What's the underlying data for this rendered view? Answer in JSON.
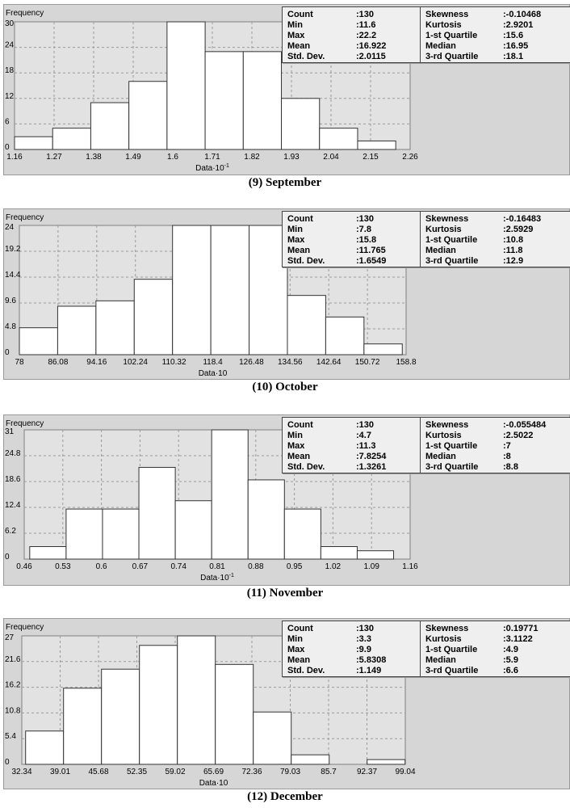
{
  "chart_data": [
    {
      "type": "bar",
      "caption": "(9) September",
      "ylabel": "Frequency",
      "xlabel": "Data·10",
      "xlabel_exp": "-1",
      "xticks": [
        "1.16",
        "1.27",
        "1.38",
        "1.49",
        "1.6",
        "1.71",
        "1.82",
        "1.93",
        "2.04",
        "2.15",
        "2.26"
      ],
      "yticks": [
        "0",
        "6",
        "12",
        "18",
        "24",
        "30"
      ],
      "xlim": [
        1.16,
        2.26
      ],
      "ylim": [
        0,
        30
      ],
      "bin_edges_start": 1.16,
      "bin_width": 0.106,
      "values": [
        3,
        5,
        11,
        16,
        30,
        23,
        23,
        12,
        5,
        2
      ],
      "grid": true,
      "stats": {
        "left": [
          [
            "Count",
            "130"
          ],
          [
            "Min",
            "11.6"
          ],
          [
            "Max",
            "22.2"
          ],
          [
            "Mean",
            "16.922"
          ],
          [
            "Std. Dev.",
            "2.0115"
          ]
        ],
        "right": [
          [
            "Skewness",
            "-0.10468"
          ],
          [
            "Kurtosis",
            "2.9201"
          ],
          [
            "1-st Quartile",
            "15.6"
          ],
          [
            "Median",
            "16.95"
          ],
          [
            "3-rd Quartile",
            "18.1"
          ]
        ]
      }
    },
    {
      "type": "bar",
      "caption": "(10) October",
      "ylabel": "Frequency",
      "xlabel": "Data·10",
      "xlabel_exp": "",
      "xticks": [
        "78",
        "86.08",
        "94.16",
        "102.24",
        "110.32",
        "118.4",
        "126.48",
        "134.56",
        "142.64",
        "150.72",
        "158.8"
      ],
      "yticks": [
        "0",
        "4.8",
        "9.6",
        "14.4",
        "19.2",
        "24"
      ],
      "xlim": [
        78,
        158.8
      ],
      "ylim": [
        0,
        24
      ],
      "bin_edges_start": 78,
      "bin_width": 8,
      "values": [
        5,
        9,
        10,
        14,
        24,
        24,
        24,
        11,
        7,
        2
      ],
      "grid": true,
      "stats": {
        "left": [
          [
            "Count",
            "130"
          ],
          [
            "Min",
            "7.8"
          ],
          [
            "Max",
            "15.8"
          ],
          [
            "Mean",
            "11.765"
          ],
          [
            "Std. Dev.",
            "1.6549"
          ]
        ],
        "right": [
          [
            "Skewness",
            "-0.16483"
          ],
          [
            "Kurtosis",
            "2.5929"
          ],
          [
            "1-st Quartile",
            "10.8"
          ],
          [
            "Median",
            "11.8"
          ],
          [
            "3-rd Quartile",
            "12.9"
          ]
        ]
      }
    },
    {
      "type": "bar",
      "caption": "(11) November",
      "ylabel": "Frequency",
      "xlabel": "Data·10",
      "xlabel_exp": "-1",
      "xticks": [
        "0.46",
        "0.53",
        "0.6",
        "0.67",
        "0.74",
        "0.81",
        "0.88",
        "0.95",
        "1.02",
        "1.09",
        "1.16"
      ],
      "yticks": [
        "0",
        "6.2",
        "12.4",
        "18.6",
        "24.8",
        "31"
      ],
      "xlim": [
        0.46,
        1.16
      ],
      "ylim": [
        0,
        31
      ],
      "bin_edges_start": 0.47,
      "bin_width": 0.066,
      "values": [
        3,
        12,
        12,
        22,
        14,
        31,
        19,
        12,
        3,
        2
      ],
      "grid": true,
      "stats": {
        "left": [
          [
            "Count",
            "130"
          ],
          [
            "Min",
            "4.7"
          ],
          [
            "Max",
            "11.3"
          ],
          [
            "Mean",
            "7.8254"
          ],
          [
            "Std. Dev.",
            "1.3261"
          ]
        ],
        "right": [
          [
            "Skewness",
            "-0.055484"
          ],
          [
            "Kurtosis",
            "2.5022"
          ],
          [
            "1-st Quartile",
            "7"
          ],
          [
            "Median",
            "8"
          ],
          [
            "3-rd Quartile",
            "8.8"
          ]
        ]
      }
    },
    {
      "type": "bar",
      "caption": "(12) December",
      "ylabel": "Frequency",
      "xlabel": "Data·10",
      "xlabel_exp": "",
      "xticks": [
        "32.34",
        "39.01",
        "45.68",
        "52.35",
        "59.02",
        "65.69",
        "72.36",
        "79.03",
        "85.7",
        "92.37",
        "99.04"
      ],
      "yticks": [
        "0",
        "5.4",
        "10.8",
        "16.2",
        "21.6",
        "27"
      ],
      "xlim": [
        32.34,
        99.04
      ],
      "ylim": [
        0,
        27
      ],
      "bin_edges_start": 33,
      "bin_width": 6.6,
      "values": [
        7,
        16,
        20,
        25,
        27,
        21,
        11,
        2,
        0,
        1
      ],
      "grid": true,
      "stats": {
        "left": [
          [
            "Count",
            "130"
          ],
          [
            "Min",
            "3.3"
          ],
          [
            "Max",
            "9.9"
          ],
          [
            "Mean",
            "5.8308"
          ],
          [
            "Std. Dev.",
            "1.149"
          ]
        ],
        "right": [
          [
            "Skewness",
            "0.19771"
          ],
          [
            "Kurtosis",
            "3.1122"
          ],
          [
            "1-st Quartile",
            "4.9"
          ],
          [
            "Median",
            "5.9"
          ],
          [
            "3-rd Quartile",
            "6.6"
          ]
        ]
      }
    }
  ]
}
